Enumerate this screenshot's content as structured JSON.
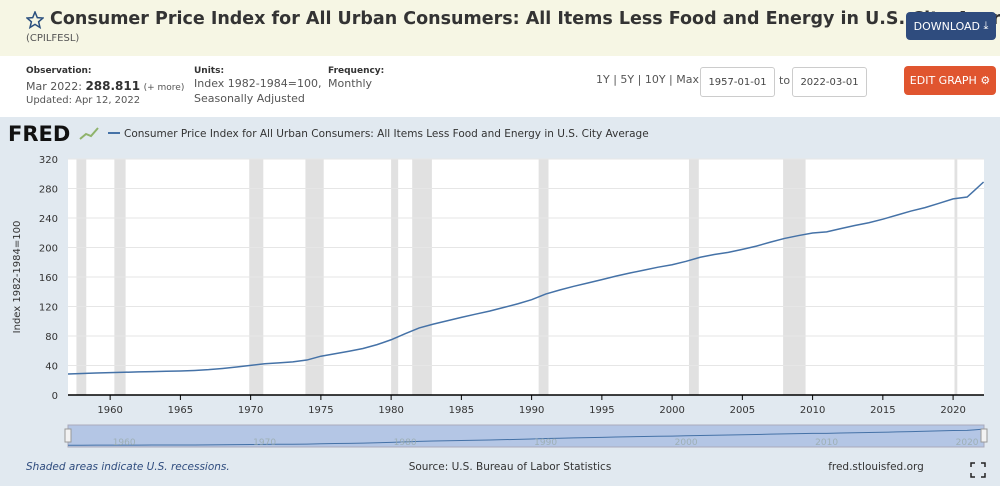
{
  "header": {
    "title": "Consumer Price Index for All Urban Consumers: All Items Less Food and Energy in U.S. City Average",
    "series_id": "(CPILFESL)",
    "download": "DOWNLOAD"
  },
  "meta": {
    "observation_label": "Observation:",
    "observation_date": "Mar 2022:",
    "observation_value": "288.811",
    "more": "(+ more)",
    "updated": "Updated: Apr 12, 2022",
    "units_label": "Units:",
    "units_1": "Index 1982-1984=100,",
    "units_2": "Seasonally Adjusted",
    "frequency_label": "Frequency:",
    "frequency": "Monthly"
  },
  "controls": {
    "ranges": [
      "1Y",
      "5Y",
      "10Y",
      "Max"
    ],
    "start_date": "1957-01-01",
    "to": "to",
    "end_date": "2022-03-01",
    "edit_graph": "EDIT GRAPH"
  },
  "chart_data": {
    "type": "line",
    "logo": "FRED",
    "y_label": "Index 1982-1984=100",
    "x": [
      1957,
      1958,
      1959,
      1960,
      1961,
      1962,
      1963,
      1964,
      1965,
      1966,
      1967,
      1968,
      1969,
      1970,
      1971,
      1972,
      1973,
      1974,
      1975,
      1976,
      1977,
      1978,
      1979,
      1980,
      1981,
      1982,
      1983,
      1984,
      1985,
      1986,
      1987,
      1988,
      1989,
      1990,
      1991,
      1992,
      1993,
      1994,
      1995,
      1996,
      1997,
      1998,
      1999,
      2000,
      2001,
      2002,
      2003,
      2004,
      2005,
      2006,
      2007,
      2008,
      2009,
      2010,
      2011,
      2012,
      2013,
      2014,
      2015,
      2016,
      2017,
      2018,
      2019,
      2020,
      2021,
      2021.5,
      2022.17
    ],
    "series": [
      {
        "name": "Consumer Price Index for All Urban Consumers: All Items Less Food and Energy in U.S. City Average",
        "color": "#4572a7",
        "values": [
          28.5,
          29.2,
          29.8,
          30.4,
          30.8,
          31.3,
          31.7,
          32.2,
          32.6,
          33.3,
          34.4,
          36.0,
          37.9,
          40.1,
          42.3,
          43.6,
          44.9,
          47.4,
          52.6,
          55.9,
          59.3,
          63.1,
          68.3,
          74.9,
          83.1,
          90.9,
          96.1,
          100.7,
          105.2,
          109.6,
          113.7,
          118.6,
          123.6,
          129.2,
          136.9,
          142.4,
          147.4,
          151.9,
          156.4,
          161.2,
          165.4,
          169.3,
          173.3,
          176.6,
          181.3,
          186.8,
          190.5,
          193.4,
          197.5,
          201.9,
          207.3,
          212.3,
          216.2,
          219.6,
          221.2,
          225.6,
          229.8,
          233.6,
          238.4,
          243.9,
          249.4,
          254.1,
          259.9,
          265.9,
          268.4,
          277.1,
          288.811
        ]
      }
    ],
    "recessions": [
      [
        1957.6,
        1958.3
      ],
      [
        1960.3,
        1961.1
      ],
      [
        1969.9,
        1970.9
      ],
      [
        1973.9,
        1975.2
      ],
      [
        1980.0,
        1980.5
      ],
      [
        1981.5,
        1982.9
      ],
      [
        1990.5,
        1991.2
      ],
      [
        2001.2,
        2001.9
      ],
      [
        2007.9,
        2009.5
      ],
      [
        2020.1,
        2020.3
      ]
    ],
    "recession_color": "#e1e1e1",
    "xlim": [
      1957,
      2022.2
    ],
    "ylim": [
      0,
      320
    ],
    "xticks": [
      1960,
      1965,
      1970,
      1975,
      1980,
      1985,
      1990,
      1995,
      2000,
      2005,
      2010,
      2015,
      2020
    ],
    "yticks": [
      0,
      40,
      80,
      120,
      160,
      200,
      240,
      280,
      320
    ],
    "grid": true,
    "navigator_ticks": [
      1960,
      1970,
      1980,
      1990,
      2000,
      2010,
      2020
    ]
  },
  "footer": {
    "note": "Shaded areas indicate U.S. recessions.",
    "source": "Source: U.S. Bureau of Labor Statistics",
    "site": "fred.stlouisfed.org"
  }
}
